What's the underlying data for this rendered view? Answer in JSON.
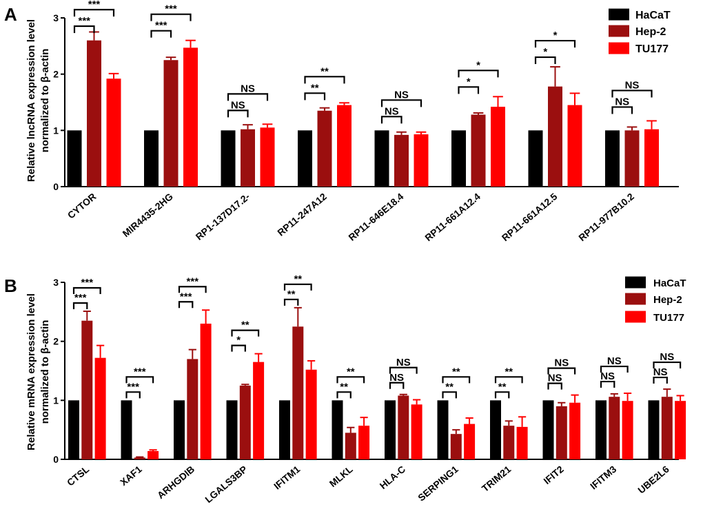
{
  "chart_data": [
    {
      "panel": "A",
      "type": "bar",
      "ylabel_line1": "Relative lncRNA expression level",
      "ylabel_line2": "normalized to β-actin",
      "ylim": [
        0,
        3
      ],
      "yticks": [
        "0",
        "1",
        "2",
        "3"
      ],
      "categories": [
        "CYTOR",
        "MIR4435-2HG",
        "RP1-137D17.2-",
        "RP11-247A12",
        "RP11-646E18.4",
        "RP11-661A12.4",
        "RP11-661A12.5",
        "RP11-977B10.2"
      ],
      "series": [
        {
          "name": "HaCaT",
          "color": "#000000",
          "values": [
            1,
            1,
            1,
            1,
            1,
            1,
            1,
            1
          ],
          "errors": [
            0,
            0,
            0,
            0,
            0,
            0,
            0,
            0
          ]
        },
        {
          "name": "Hep-2",
          "color": "#9b0f0f",
          "values": [
            2.6,
            2.25,
            1.02,
            1.35,
            0.92,
            1.28,
            1.78,
            1.0
          ],
          "errors": [
            0.15,
            0.05,
            0.08,
            0.05,
            0.05,
            0.03,
            0.35,
            0.06
          ]
        },
        {
          "name": "TU177",
          "color": "#ff0000",
          "values": [
            1.92,
            2.47,
            1.05,
            1.45,
            0.93,
            1.42,
            1.45,
            1.02
          ],
          "errors": [
            0.09,
            0.13,
            0.06,
            0.04,
            0.04,
            0.18,
            0.21,
            0.15
          ]
        }
      ],
      "significance": [
        {
          "near": "***",
          "far": "***"
        },
        {
          "near": "***",
          "far": "***"
        },
        {
          "near": "NS",
          "far": "NS"
        },
        {
          "near": "**",
          "far": "**"
        },
        {
          "near": "NS",
          "far": "NS"
        },
        {
          "near": "*",
          "far": "*"
        },
        {
          "near": "*",
          "far": "*"
        },
        {
          "near": "NS",
          "far": "NS"
        }
      ]
    },
    {
      "panel": "B",
      "type": "bar",
      "ylabel_line1": "Relative mRNA expression level",
      "ylabel_line2": "normalized to β-actin",
      "ylim": [
        0,
        3
      ],
      "yticks": [
        "0",
        "1",
        "2",
        "3"
      ],
      "categories": [
        "CTSL",
        "XAF1",
        "ARHGDIB",
        "LGALS3BP",
        "IFITM1",
        "MLKL",
        "HLA-C",
        "SERPING1",
        "TRIM21",
        "IFIT2",
        "IFITM3",
        "UBE2L6"
      ],
      "series": [
        {
          "name": "HaCaT",
          "color": "#000000",
          "values": [
            1,
            1,
            1,
            1,
            1,
            1,
            1,
            1,
            1,
            1,
            1,
            1
          ],
          "errors": [
            0,
            0,
            0,
            0,
            0,
            0,
            0,
            0,
            0,
            0,
            0,
            0
          ]
        },
        {
          "name": "Hep-2",
          "color": "#9b0f0f",
          "values": [
            2.35,
            0.03,
            1.7,
            1.25,
            2.25,
            0.45,
            1.08,
            0.43,
            0.57,
            0.9,
            1.06,
            1.06
          ],
          "errors": [
            0.16,
            0.01,
            0.16,
            0.02,
            0.32,
            0.09,
            0.02,
            0.07,
            0.08,
            0.06,
            0.05,
            0.13
          ]
        },
        {
          "name": "TU177",
          "color": "#ff0000",
          "values": [
            1.72,
            0.14,
            2.3,
            1.65,
            1.52,
            0.57,
            0.93,
            0.6,
            0.55,
            0.96,
            0.99,
            0.99
          ],
          "errors": [
            0.21,
            0.02,
            0.23,
            0.14,
            0.15,
            0.14,
            0.08,
            0.1,
            0.17,
            0.13,
            0.13,
            0.09
          ]
        }
      ],
      "significance": [
        {
          "near": "***",
          "far": "***"
        },
        {
          "near": "***",
          "far": "***"
        },
        {
          "near": "***",
          "far": "***"
        },
        {
          "near": "*",
          "far": "**"
        },
        {
          "near": "**",
          "far": "**"
        },
        {
          "near": "**",
          "far": "**"
        },
        {
          "near": "NS",
          "far": "NS"
        },
        {
          "near": "**",
          "far": "**"
        },
        {
          "near": "**",
          "far": "**"
        },
        {
          "near": "NS",
          "far": "NS"
        },
        {
          "near": "NS",
          "far": "NS"
        },
        {
          "near": "NS",
          "far": "NS"
        }
      ]
    }
  ]
}
